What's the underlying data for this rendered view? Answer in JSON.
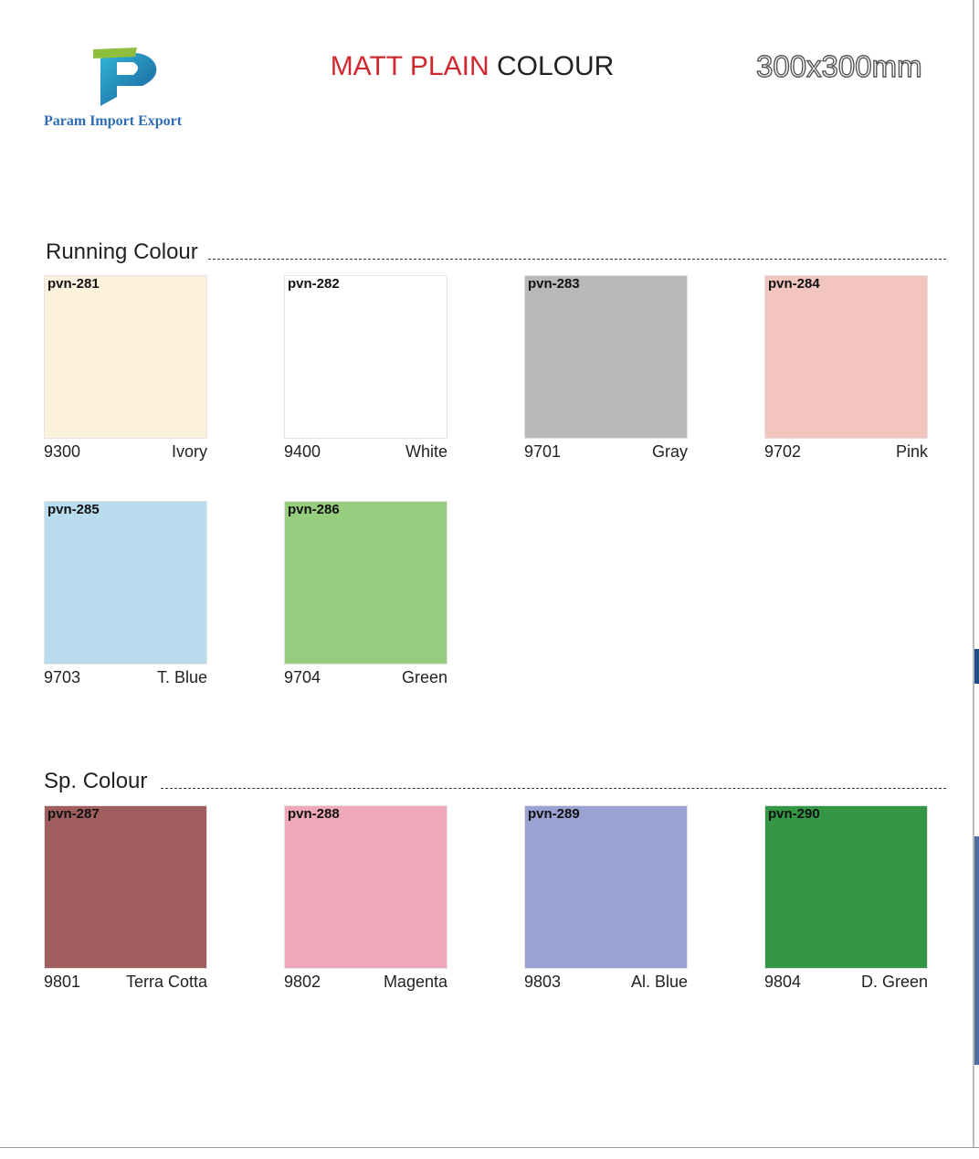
{
  "header": {
    "brand": "Param Import Export",
    "title_accent": "MATT PLAIN",
    "title_rest": "COLOUR",
    "size": "300x300mm"
  },
  "sections": [
    {
      "title": "Running Colour",
      "tiles": [
        {
          "code": "pvn-281",
          "number": "9300",
          "name": "Ivory",
          "color": "#fcf1dc"
        },
        {
          "code": "pvn-282",
          "number": "9400",
          "name": "White",
          "color": "#ffffff"
        },
        {
          "code": "pvn-283",
          "number": "9701",
          "name": "Gray",
          "color": "#b8b8b8"
        },
        {
          "code": "pvn-284",
          "number": "9702",
          "name": "Pink",
          "color": "#f2c5bf"
        },
        {
          "code": "pvn-285",
          "number": "9703",
          "name": "T. Blue",
          "color": "#b9ddee"
        },
        {
          "code": "pvn-286",
          "number": "9704",
          "name": "Green",
          "color": "#97cd7e"
        }
      ]
    },
    {
      "title": "Sp. Colour",
      "tiles": [
        {
          "code": "pvn-287",
          "number": "9801",
          "name": "Terra Cotta",
          "color": "#a05f5e"
        },
        {
          "code": "pvn-288",
          "number": "9802",
          "name": "Magenta",
          "color": "#efa7ba"
        },
        {
          "code": "pvn-289",
          "number": "9803",
          "name": "Al. Blue",
          "color": "#9ba1d2"
        },
        {
          "code": "pvn-290",
          "number": "9804",
          "name": "D. Green",
          "color": "#339745"
        }
      ]
    }
  ]
}
